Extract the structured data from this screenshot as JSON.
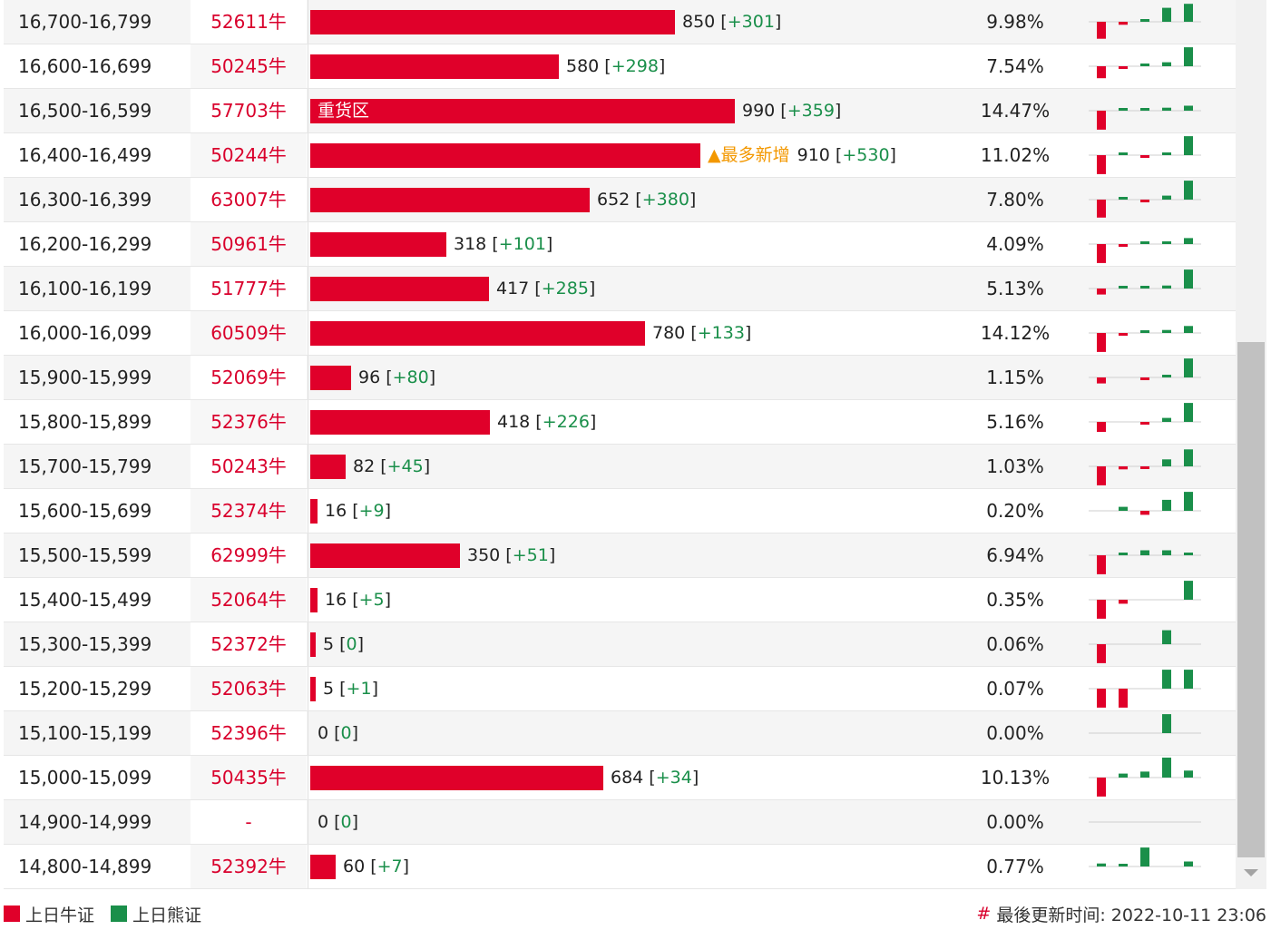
{
  "colors": {
    "bull": "#e0002a",
    "bear": "#1a8f4a",
    "code_text": "#d9002c",
    "alert": "#f39800"
  },
  "rows": [
    {
      "range": "16,700-16,799",
      "code": "52611牛",
      "count_val": 850,
      "count": "850",
      "change": "+301",
      "pct": "9.98%",
      "spark": [
        -0.85,
        -0.15,
        0.1,
        0.7,
        0.9
      ]
    },
    {
      "range": "16,600-16,699",
      "code": "50245牛",
      "count_val": 580,
      "count": "580",
      "change": "+298",
      "pct": "7.54%",
      "spark": [
        -0.6,
        -0.1,
        0.1,
        0.2,
        0.95
      ]
    },
    {
      "range": "16,500-16,599",
      "code": "57703牛",
      "count_val": 990,
      "count": "990",
      "change": "+359",
      "pct": "14.47%",
      "tag": "重货区",
      "spark": [
        -0.95,
        0.1,
        0.1,
        0.15,
        0.25
      ]
    },
    {
      "range": "16,400-16,499",
      "code": "50244牛",
      "count_val": 910,
      "count": "910",
      "change": "+530",
      "pct": "11.02%",
      "alert": "▲最多新增",
      "spark": [
        -0.95,
        0.1,
        -0.1,
        0.1,
        0.95
      ]
    },
    {
      "range": "16,300-16,399",
      "code": "63007牛",
      "count_val": 652,
      "count": "652",
      "change": "+380",
      "pct": "7.80%",
      "spark": [
        -0.9,
        0.1,
        -0.1,
        0.2,
        0.95
      ]
    },
    {
      "range": "16,200-16,299",
      "code": "50961牛",
      "count_val": 318,
      "count": "318",
      "change": "+101",
      "pct": "4.09%",
      "spark": [
        -0.95,
        -0.1,
        0.1,
        0.1,
        0.3
      ]
    },
    {
      "range": "16,100-16,199",
      "code": "51777牛",
      "count_val": 417,
      "count": "417",
      "change": "+285",
      "pct": "5.13%",
      "spark": [
        -0.3,
        0.1,
        0.1,
        0.15,
        0.95
      ]
    },
    {
      "range": "16,000-16,099",
      "code": "60509牛",
      "count_val": 780,
      "count": "780",
      "change": "+133",
      "pct": "14.12%",
      "spark": [
        -0.95,
        -0.1,
        0.1,
        0.15,
        0.35
      ]
    },
    {
      "range": "15,900-15,999",
      "code": "52069牛",
      "count_val": 96,
      "count": "96",
      "change": "+80",
      "pct": "1.15%",
      "spark": [
        -0.3,
        0,
        -0.1,
        0.1,
        0.95
      ]
    },
    {
      "range": "15,800-15,899",
      "code": "52376牛",
      "count_val": 418,
      "count": "418",
      "change": "+226",
      "pct": "5.16%",
      "spark": [
        -0.5,
        0,
        -0.1,
        0.2,
        0.95
      ]
    },
    {
      "range": "15,700-15,799",
      "code": "50243牛",
      "count_val": 82,
      "count": "82",
      "change": "+45",
      "pct": "1.03%",
      "spark": [
        -0.95,
        -0.15,
        -0.1,
        0.35,
        0.85
      ]
    },
    {
      "range": "15,600-15,699",
      "code": "52374牛",
      "count_val": 16,
      "count": "16",
      "change": "+9",
      "pct": "0.20%",
      "spark": [
        0,
        0.2,
        -0.2,
        0.55,
        0.95
      ]
    },
    {
      "range": "15,500-15,599",
      "code": "62999牛",
      "count_val": 350,
      "count": "350",
      "change": "+51",
      "pct": "6.94%",
      "spark": [
        -0.95,
        0.1,
        0.25,
        0.25,
        0.1
      ]
    },
    {
      "range": "15,400-15,499",
      "code": "52064牛",
      "count_val": 16,
      "count": "16",
      "change": "+5",
      "pct": "0.35%",
      "spark": [
        -0.95,
        -0.2,
        0,
        0,
        0.95
      ]
    },
    {
      "range": "15,300-15,399",
      "code": "52372牛",
      "count_val": 5,
      "count": "5",
      "change": "0",
      "pct": "0.06%",
      "spark": [
        -0.95,
        0,
        0,
        0.7,
        0
      ]
    },
    {
      "range": "15,200-15,299",
      "code": "52063牛",
      "count_val": 5,
      "count": "5",
      "change": "+1",
      "pct": "0.07%",
      "spark": [
        -0.95,
        -0.95,
        0,
        0.95,
        0.95
      ]
    },
    {
      "range": "15,100-15,199",
      "code": "52396牛",
      "count_val": 0,
      "count": "0",
      "change": "0",
      "pct": "0.00%",
      "spark": [
        0,
        0,
        0,
        0.95,
        0
      ]
    },
    {
      "range": "15,000-15,099",
      "code": "50435牛",
      "count_val": 684,
      "count": "684",
      "change": "+34",
      "pct": "10.13%",
      "spark": [
        -0.95,
        0.2,
        0.3,
        1,
        0.35
      ]
    },
    {
      "range": "14,900-14,999",
      "code": "-",
      "count_val": 0,
      "count": "0",
      "change": "0",
      "pct": "0.00%",
      "spark": [
        0,
        0,
        0,
        0,
        0
      ]
    },
    {
      "range": "14,800-14,899",
      "code": "52392牛",
      "count_val": 60,
      "count": "60",
      "change": "+7",
      "pct": "0.77%",
      "spark": [
        0.15,
        0.1,
        0.95,
        0,
        0.25
      ]
    }
  ],
  "legend": {
    "bull_label": "上日牛证",
    "bear_label": "上日熊证"
  },
  "updated": {
    "hash": "#",
    "text": "最後更新时间: 2022-10-11 23:06"
  }
}
